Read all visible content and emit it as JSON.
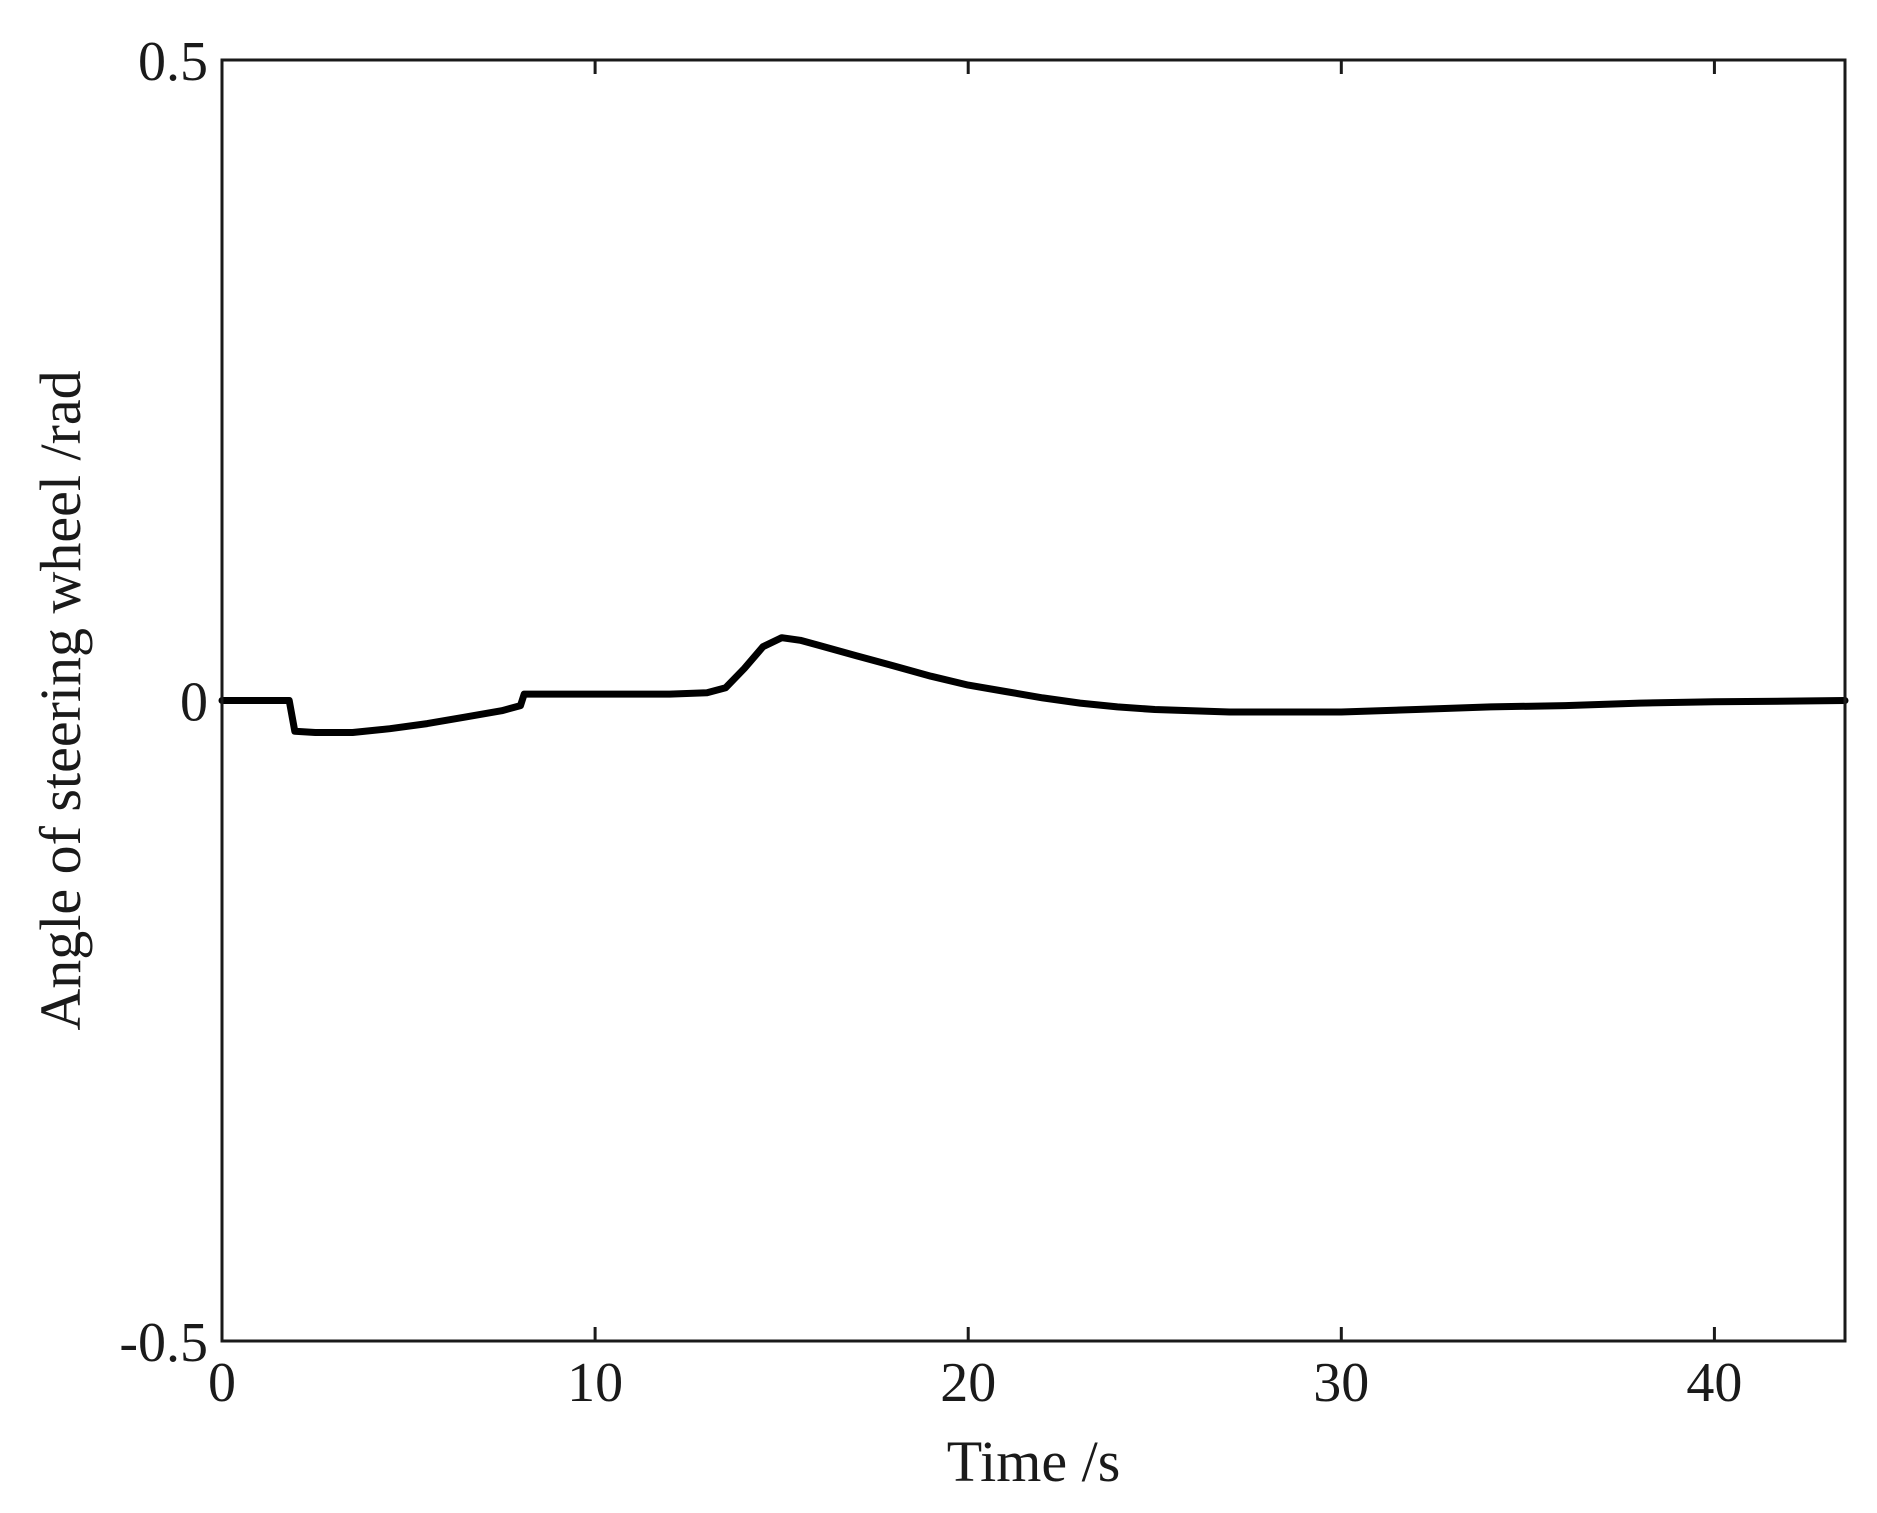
{
  "chart_data": {
    "type": "line",
    "title": "",
    "xlabel": "Time /s",
    "ylabel": "Angle of steering wheel /rad",
    "xlim": [
      0,
      43.5
    ],
    "ylim": [
      -0.5,
      0.5
    ],
    "xticks": [
      0,
      10,
      20,
      30,
      40
    ],
    "xtick_labels": [
      "0",
      "10",
      "20",
      "30",
      "40"
    ],
    "yticks": [
      -0.5,
      0,
      0.5
    ],
    "ytick_labels": [
      "-0.5",
      "0",
      "0.5"
    ],
    "grid": false,
    "legend": "none",
    "series": [
      {
        "color": "#000000",
        "x": [
          0,
          1.8,
          1.95,
          2.5,
          3.5,
          4.5,
          5.5,
          6.5,
          7.5,
          8.0,
          8.1,
          10,
          12,
          13,
          13.5,
          14,
          14.5,
          15.0,
          15.5,
          16,
          17,
          18,
          19,
          20,
          21,
          22,
          23,
          24,
          25,
          26,
          27,
          28,
          29,
          30,
          32,
          34,
          36,
          38,
          40,
          42,
          43.5
        ],
        "y": [
          0,
          0,
          -0.024,
          -0.025,
          -0.025,
          -0.022,
          -0.018,
          -0.013,
          -0.008,
          -0.004,
          0.005,
          0.005,
          0.005,
          0.006,
          0.01,
          0.025,
          0.042,
          0.049,
          0.047,
          0.043,
          0.035,
          0.027,
          0.019,
          0.012,
          0.007,
          0.002,
          -0.002,
          -0.005,
          -0.007,
          -0.008,
          -0.009,
          -0.009,
          -0.009,
          -0.009,
          -0.007,
          -0.005,
          -0.004,
          -0.002,
          -0.001,
          -0.0005,
          0
        ]
      }
    ]
  }
}
